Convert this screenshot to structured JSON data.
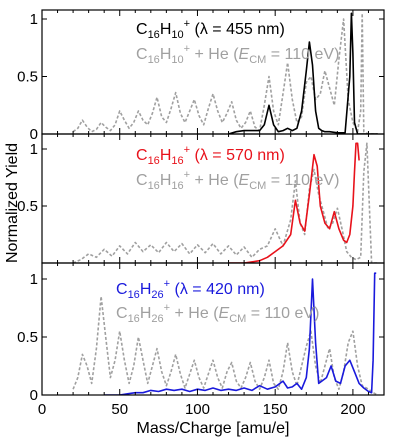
{
  "figure": {
    "ylabel": "Normalized Yield",
    "xlabel": "Mass/Charge [amu/e]",
    "x_ticks": [
      "0",
      "50",
      "100",
      "150",
      "200"
    ]
  },
  "panels": [
    {
      "formula_main": "C",
      "sub1": "16",
      "mid": "H",
      "sub2": "10",
      "sup": "+",
      "laser_rest": " (λ = 455 nm)",
      "he_rest": " + He (",
      "ecm_e": "E",
      "ecm_cm": "CM",
      "ecm_val": " = 110 eV)",
      "y_ticks": [
        "0",
        "0.5",
        "1"
      ],
      "color": "#000000"
    },
    {
      "formula_main": "C",
      "sub1": "16",
      "mid": "H",
      "sub2": "16",
      "sup": "+",
      "laser_rest": " (λ = 570 nm)",
      "he_rest": " + He (",
      "ecm_e": "E",
      "ecm_cm": "CM",
      "ecm_val": " = 110 eV)",
      "y_ticks": [
        "0.5",
        "1"
      ],
      "color": "#e8121b"
    },
    {
      "formula_main": "C",
      "sub1": "16",
      "mid": "H",
      "sub2": "26",
      "sup": "+",
      "laser_rest": " (λ = 420 nm)",
      "he_rest": " + He (",
      "ecm_e": "E",
      "ecm_cm": "CM",
      "ecm_val": " = 110 eV)",
      "y_ticks": [
        "0",
        "0.5",
        "1"
      ],
      "color": "#1a1adc"
    }
  ],
  "chart_data": {
    "type": "line",
    "xlabel": "Mass/Charge [amu/e]",
    "ylabel": "Normalized Yield",
    "xlim": [
      0,
      220
    ],
    "panels": [
      {
        "ylim": [
          0,
          1.05
        ],
        "series": [
          {
            "name": "C16H10+ + He (ECM = 110 eV)",
            "color": "#a0a0a0",
            "style": "dashed",
            "x": [
              20,
              23,
              26,
              29,
              32,
              35,
              38,
              41,
              44,
              47,
              50,
              53,
              56,
              59,
              62,
              65,
              68,
              71,
              74,
              77,
              80,
              83,
              86,
              89,
              92,
              95,
              98,
              101,
              104,
              107,
              110,
              113,
              116,
              119,
              122,
              125,
              128,
              131,
              134,
              137,
              140,
              143,
              146,
              149,
              152,
              155,
              158,
              161,
              164,
              167,
              170,
              173,
              176,
              179,
              182,
              185,
              188,
              191,
              194,
              197,
              200,
              202,
              203,
              205,
              206,
              207,
              210,
              213,
              216
            ],
            "y": [
              0.02,
              0.05,
              0.12,
              0.06,
              0.02,
              0.04,
              0.1,
              0.06,
              0.03,
              0.08,
              0.2,
              0.12,
              0.05,
              0.1,
              0.2,
              0.12,
              0.08,
              0.18,
              0.32,
              0.15,
              0.1,
              0.22,
              0.36,
              0.18,
              0.1,
              0.2,
              0.3,
              0.16,
              0.08,
              0.22,
              0.35,
              0.2,
              0.1,
              0.18,
              0.28,
              0.12,
              0.05,
              0.1,
              0.2,
              0.06,
              0.03,
              0.25,
              0.5,
              0.2,
              0.08,
              0.35,
              0.62,
              0.3,
              0.1,
              0.15,
              0.45,
              0.5,
              0.3,
              0.35,
              0.55,
              0.4,
              0.25,
              0.65,
              1.0,
              0.3,
              0.1,
              0.05,
              0.02,
              0.2,
              1.05,
              0.02,
              0.0,
              0.0,
              0.0
            ]
          },
          {
            "name": "C16H10+ (λ = 455 nm)",
            "color": "#000000",
            "style": "solid",
            "x": [
              120,
              125,
              130,
              140,
              143,
              146,
              149,
              152,
              155,
              158,
              161,
              164,
              167,
              170,
              172,
              174,
              176,
              178,
              180,
              182,
              185,
              190,
              195,
              198,
              199,
              200,
              201,
              203,
              206,
              210,
              216
            ],
            "y": [
              0.0,
              0.02,
              0.03,
              0.03,
              0.08,
              0.25,
              0.08,
              0.02,
              0.03,
              0.05,
              0.03,
              0.05,
              0.2,
              0.55,
              0.8,
              0.6,
              0.2,
              0.05,
              0.03,
              0.02,
              0.02,
              0.01,
              0.01,
              0.5,
              1.05,
              0.7,
              0.1,
              0.0,
              0.0,
              0.0,
              0.0
            ]
          }
        ]
      },
      {
        "ylim": [
          0,
          1.05
        ],
        "series": [
          {
            "name": "C16H16+ + He (ECM = 110 eV)",
            "color": "#a0a0a0",
            "style": "dashed",
            "x": [
              20,
              25,
              30,
              35,
              40,
              45,
              50,
              55,
              60,
              65,
              70,
              75,
              80,
              85,
              90,
              95,
              100,
              105,
              110,
              115,
              120,
              125,
              130,
              135,
              140,
              145,
              150,
              155,
              160,
              163,
              166,
              169,
              172,
              175,
              178,
              181,
              184,
              187,
              190,
              193,
              196,
              199,
              202,
              205,
              207,
              209,
              212,
              216
            ],
            "y": [
              0.0,
              0.03,
              0.08,
              0.05,
              0.12,
              0.06,
              0.15,
              0.08,
              0.18,
              0.1,
              0.16,
              0.09,
              0.18,
              0.1,
              0.17,
              0.08,
              0.16,
              0.09,
              0.17,
              0.08,
              0.15,
              0.07,
              0.14,
              0.05,
              0.12,
              0.15,
              0.3,
              0.15,
              0.38,
              0.72,
              0.35,
              0.25,
              0.65,
              0.82,
              0.6,
              0.45,
              0.3,
              0.35,
              0.48,
              0.3,
              0.1,
              0.05,
              0.03,
              0.05,
              0.8,
              1.05,
              0.0,
              0.0
            ]
          },
          {
            "name": "C16H16+ (λ = 570 nm)",
            "color": "#e8121b",
            "style": "solid",
            "x": [
              120,
              130,
              140,
              145,
              150,
              155,
              160,
              163,
              166,
              169,
              172,
              175,
              177,
              179,
              182,
              185,
              188,
              191,
              194,
              196,
              198,
              200,
              201,
              202,
              203,
              204
            ],
            "y": [
              0.0,
              0.0,
              0.02,
              0.05,
              0.1,
              0.15,
              0.25,
              0.55,
              0.35,
              0.28,
              0.6,
              0.95,
              0.85,
              0.5,
              0.35,
              0.3,
              0.45,
              0.3,
              0.2,
              0.18,
              0.25,
              0.5,
              0.8,
              1.05,
              1.05,
              0.9
            ]
          }
        ]
      },
      {
        "ylim": [
          0,
          1.05
        ],
        "series": [
          {
            "name": "C16H26+ + He (ECM = 110 eV)",
            "color": "#a0a0a0",
            "style": "dashed",
            "x": [
              20,
              23,
              26,
              29,
              32,
              35,
              38,
              41,
              44,
              47,
              50,
              53,
              56,
              59,
              62,
              65,
              68,
              71,
              74,
              77,
              80,
              83,
              86,
              89,
              92,
              95,
              98,
              101,
              104,
              107,
              110,
              113,
              116,
              119,
              122,
              125,
              128,
              131,
              134,
              137,
              140,
              143,
              146,
              149,
              152,
              155,
              158,
              161,
              164,
              167,
              170,
              173,
              176,
              179,
              182,
              185,
              188,
              191,
              194,
              197,
              200,
              203,
              206,
              210,
              213,
              216
            ],
            "y": [
              0.05,
              0.15,
              0.35,
              0.25,
              0.1,
              0.4,
              0.85,
              0.5,
              0.15,
              0.3,
              0.55,
              0.3,
              0.1,
              0.25,
              0.5,
              0.3,
              0.1,
              0.25,
              0.4,
              0.2,
              0.08,
              0.2,
              0.35,
              0.18,
              0.06,
              0.18,
              0.3,
              0.15,
              0.06,
              0.18,
              0.3,
              0.15,
              0.06,
              0.2,
              0.28,
              0.12,
              0.06,
              0.15,
              0.28,
              0.12,
              0.05,
              0.15,
              0.3,
              0.1,
              0.05,
              0.2,
              0.45,
              0.2,
              0.08,
              0.25,
              0.42,
              0.55,
              0.25,
              0.1,
              0.25,
              0.4,
              0.15,
              0.05,
              0.2,
              0.45,
              0.55,
              0.25,
              0.08,
              0.05,
              0.02,
              0.0
            ]
          },
          {
            "name": "C16H26+ (λ = 420 nm)",
            "color": "#1a1adc",
            "style": "solid",
            "x": [
              40,
              50,
              55,
              60,
              65,
              70,
              75,
              80,
              85,
              90,
              95,
              100,
              105,
              110,
              115,
              120,
              125,
              130,
              135,
              140,
              145,
              150,
              155,
              158,
              161,
              164,
              167,
              170,
              172,
              174,
              176,
              178,
              180,
              183,
              186,
              189,
              192,
              195,
              198,
              201,
              204,
              207,
              210,
              212,
              213,
              214,
              215
            ],
            "y": [
              0.0,
              0.0,
              0.01,
              0.02,
              0.02,
              0.04,
              0.03,
              0.05,
              0.04,
              0.05,
              0.03,
              0.05,
              0.04,
              0.06,
              0.04,
              0.05,
              0.04,
              0.06,
              0.04,
              0.08,
              0.05,
              0.07,
              0.12,
              0.06,
              0.07,
              0.1,
              0.05,
              0.15,
              0.4,
              1.0,
              0.45,
              0.1,
              0.12,
              0.15,
              0.25,
              0.12,
              0.1,
              0.25,
              0.3,
              0.2,
              0.1,
              0.06,
              0.03,
              0.02,
              0.3,
              1.05,
              1.05
            ]
          }
        ]
      }
    ]
  }
}
